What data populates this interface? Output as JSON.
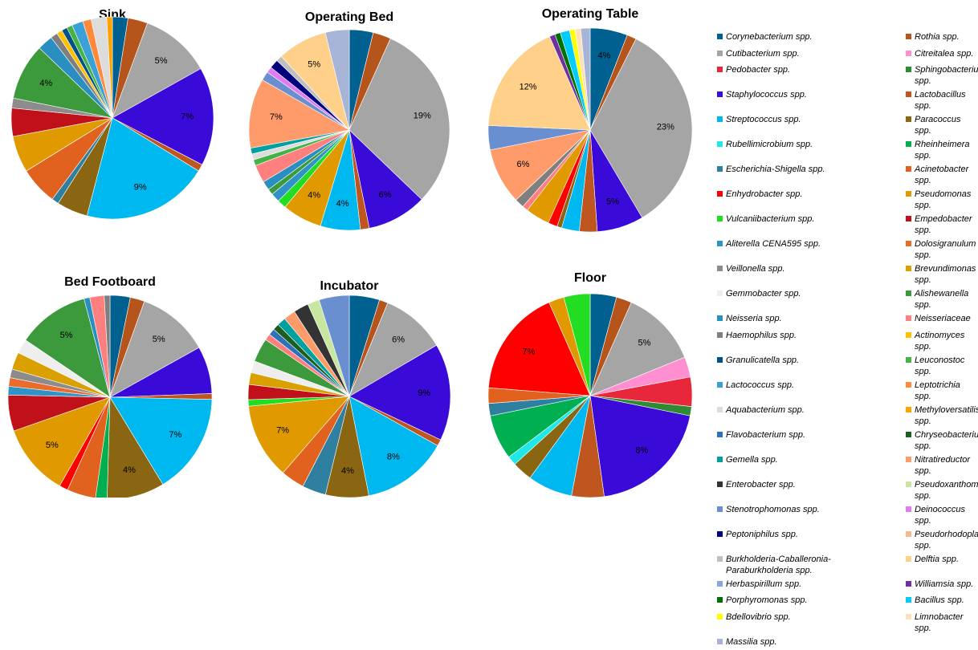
{
  "legend": {
    "labels": [
      "Corynebacterium spp.",
      "Rothia spp.",
      "Cutibacterium spp.",
      "Citreitalea spp.",
      "Pedobacter spp.",
      "Sphingobacterium spp.",
      "Staphylococcus spp.",
      "Lactobacillus spp.",
      "Streptococcus spp.",
      "Paracoccus spp.",
      "Rubellimicrobium spp.",
      "Rheinheimera spp.",
      "Escherichia-Shigella spp.",
      "Acinetobacter spp.",
      "Enhydrobacter spp.",
      "Pseudomonas spp.",
      "Vulcaniibacterium spp.",
      "Empedobacter spp.",
      "Aliterella CENA595 spp.",
      "Dolosigranulum spp.",
      "Veillonella spp.",
      "Brevundimonas spp.",
      "Gemmobacter spp.",
      "Alishewanella spp.",
      "Neisseria spp.",
      "Neisseriaceae",
      "Haemophilus spp.",
      "Actinomyces spp.",
      "Granulicatella spp.",
      "Leuconostoc spp.",
      "Lactococcus spp.",
      "Leptotrichia spp.",
      "Aquabacterium spp.",
      "Methyloversatilis spp.",
      "Flavobacterium spp.",
      "Chryseobacterium spp.",
      "Gemella spp.",
      "Nitratireductor spp.",
      "Enterobacter spp.",
      "Pseudoxanthomonas spp.",
      "Stenotrophomonas spp.",
      "Deinococcus spp.",
      "Peptoniphilus spp.",
      "Pseudorhodoplanes spp.",
      "Burkholderia-Caballeronia-Paraburkholderia spp.",
      "Delftia spp.",
      "Herbaspirillum spp.",
      "Williamsia spp.",
      "Porphyromonas spp.",
      "Bacillus spp.",
      "Bdellovibrio spp.",
      "Limnobacter spp.",
      "Massilia spp."
    ],
    "colors": [
      "#00608f",
      "#b5541b",
      "#a5a5a5",
      "#ff8fd0",
      "#e8283a",
      "#2e8b34",
      "#3a0ad8",
      "#c0561f",
      "#00b8f0",
      "#8a6512",
      "#1ee8e8",
      "#00b050",
      "#2e7fa0",
      "#e0621e",
      "#ff0000",
      "#e09a00",
      "#22dd22",
      "#c0101a",
      "#2f93c8",
      "#e86c2c",
      "#8c8c8c",
      "#d9a000",
      "#eeeeee",
      "#3c9a3c",
      "#2a8fc0",
      "#ff7f7f",
      "#7f7f7f",
      "#ffc000",
      "#00508a",
      "#44b244",
      "#3ba0d8",
      "#ff8a3c",
      "#dcdcdc",
      "#ffa200",
      "#2b72b8",
      "#1b5e20",
      "#00a0a0",
      "#ff9a6a",
      "#333333",
      "#c8e6a0",
      "#6a8fd0",
      "#e27af2",
      "#00007f",
      "#f5b890",
      "#bfbfbf",
      "#ffd08a",
      "#87a9d9",
      "#7030a0",
      "#007000",
      "#00ccff",
      "#ffff00",
      "#ffe0b8",
      "#a6b4d8"
    ]
  },
  "chart_data": [
    {
      "type": "pie",
      "title": "Sink",
      "values": [
        1.1,
        1.4,
        5,
        0,
        0,
        0,
        7,
        0.5,
        9,
        2.2,
        0,
        0,
        0.5,
        2.7,
        0,
        2.6,
        0,
        2,
        0,
        0,
        0.7,
        0,
        0,
        4,
        1.1,
        0,
        0.5,
        0.4,
        0.4,
        0.4,
        0.8,
        0.6,
        1.1,
        0.4,
        0,
        0,
        0,
        0,
        0,
        0,
        0,
        0,
        0,
        0,
        0,
        0,
        0,
        0,
        0,
        0,
        0,
        0,
        0
      ],
      "value_labels": [
        null,
        null,
        "5%",
        null,
        null,
        null,
        "7%",
        null,
        "9%",
        null,
        null,
        null,
        null,
        null,
        null,
        null,
        null,
        null,
        null,
        null,
        null,
        null,
        null,
        "4%",
        null,
        null,
        null,
        null,
        null,
        null,
        null,
        null,
        null,
        null,
        null,
        null,
        null,
        null,
        null,
        null,
        null,
        null,
        null,
        null,
        null,
        null,
        null,
        null,
        null,
        null,
        null,
        null,
        null
      ]
    },
    {
      "type": "pie",
      "title": "Operating Bed",
      "values": [
        2.4,
        1.8,
        19,
        0,
        0,
        0,
        6,
        0.9,
        4,
        0,
        0,
        0,
        0,
        0,
        0,
        4,
        0.9,
        0,
        0.9,
        0,
        0,
        0,
        0,
        0.6,
        0.9,
        1.8,
        0,
        0,
        0,
        0.6,
        0,
        0,
        0.6,
        0,
        0,
        0,
        0.6,
        7,
        0,
        0,
        0.9,
        0.6,
        0.9,
        0,
        0.6,
        5,
        0,
        0,
        0,
        0,
        0,
        0,
        2.4
      ],
      "value_labels": [
        null,
        null,
        "19%",
        null,
        null,
        null,
        "6%",
        null,
        "4%",
        null,
        null,
        null,
        null,
        null,
        null,
        "4%",
        null,
        null,
        null,
        null,
        null,
        null,
        null,
        null,
        null,
        null,
        null,
        null,
        null,
        null,
        null,
        null,
        null,
        null,
        null,
        null,
        null,
        "7%",
        null,
        null,
        null,
        null,
        null,
        null,
        null,
        "5%",
        null,
        null,
        null,
        null,
        null,
        null,
        null
      ]
    },
    {
      "type": "pie",
      "title": "Operating Table",
      "values": [
        4,
        1,
        23,
        0,
        0,
        0,
        5,
        1.9,
        1.9,
        0.5,
        0,
        0,
        0,
        0,
        1,
        2.6,
        0,
        0,
        0,
        0,
        0,
        0,
        0,
        0,
        0,
        0.6,
        1,
        0,
        0,
        0,
        0,
        0,
        0,
        0,
        0,
        0,
        0,
        6,
        0,
        0,
        2.6,
        0,
        0,
        0,
        0,
        12,
        0,
        0.6,
        0.6,
        1,
        0.6,
        0.6,
        1
      ],
      "value_labels": [
        "4%",
        null,
        "23%",
        null,
        null,
        null,
        "5%",
        null,
        null,
        null,
        null,
        null,
        null,
        null,
        null,
        null,
        null,
        null,
        null,
        null,
        null,
        null,
        null,
        null,
        null,
        null,
        null,
        null,
        null,
        null,
        null,
        null,
        null,
        null,
        null,
        null,
        null,
        "6%",
        null,
        null,
        null,
        null,
        null,
        null,
        null,
        "12%",
        null,
        null,
        null,
        null,
        null,
        null,
        null
      ]
    },
    {
      "type": "pie",
      "title": "Bed Footboard",
      "values": [
        1.4,
        1,
        5,
        0,
        0,
        0,
        3.3,
        0.4,
        7,
        4,
        0,
        0.8,
        0,
        2,
        0.6,
        5,
        0,
        2.5,
        0.6,
        0.6,
        0.6,
        1.2,
        1,
        5,
        0.4,
        1,
        0.4,
        0,
        0,
        0,
        0,
        0,
        0,
        0,
        0,
        0,
        0,
        0,
        0,
        0,
        0,
        0,
        0,
        0,
        0,
        0,
        0,
        0,
        0,
        0,
        0,
        0,
        0
      ],
      "value_labels": [
        null,
        null,
        "5%",
        null,
        null,
        null,
        null,
        null,
        "7%",
        "4%",
        null,
        null,
        null,
        null,
        null,
        "5%",
        null,
        null,
        null,
        null,
        null,
        null,
        null,
        "5%",
        null,
        null,
        null,
        null,
        null,
        null,
        null,
        null,
        null,
        null,
        null,
        null,
        null,
        null,
        null,
        null,
        null,
        null,
        null,
        null,
        null,
        null,
        null,
        null,
        null,
        null,
        null,
        null,
        null
      ]
    },
    {
      "type": "pie",
      "title": "Incubator",
      "values": [
        2.8,
        0.8,
        6,
        0,
        0,
        0,
        9,
        0.6,
        8,
        4,
        0,
        0,
        2.2,
        2.2,
        0,
        7,
        0.6,
        1.4,
        0,
        0,
        0,
        1.1,
        1.1,
        2.2,
        0,
        0.6,
        0,
        0,
        0,
        0,
        0,
        0,
        0,
        0,
        0.6,
        0.6,
        0.8,
        1.1,
        1.4,
        1.1,
        2.8,
        0,
        0,
        0,
        0,
        0,
        0,
        0,
        0,
        0,
        0,
        0,
        0
      ],
      "value_labels": [
        null,
        null,
        "6%",
        null,
        null,
        null,
        "9%",
        null,
        "8%",
        "4%",
        null,
        null,
        null,
        null,
        null,
        "7%",
        null,
        null,
        null,
        null,
        null,
        null,
        null,
        null,
        null,
        null,
        null,
        null,
        null,
        null,
        null,
        null,
        null,
        null,
        null,
        null,
        null,
        null,
        null,
        null,
        null,
        null,
        null,
        null,
        null,
        null,
        null,
        null,
        null,
        null,
        null,
        null,
        null
      ]
    },
    {
      "type": "pie",
      "title": "Floor",
      "values": [
        1.7,
        1,
        5,
        1.3,
        1.9,
        0.6,
        8,
        2.1,
        2.9,
        1.3,
        0.6,
        2.9,
        0.8,
        1,
        7,
        1,
        1.7,
        0,
        0,
        0,
        0,
        0,
        0,
        0,
        0,
        0,
        0,
        0,
        0,
        0,
        0,
        0,
        0,
        0,
        0,
        0,
        0,
        0,
        0,
        0,
        0,
        0,
        0,
        0,
        0,
        0,
        0,
        0,
        0,
        0,
        0,
        0,
        0
      ],
      "value_labels": [
        null,
        null,
        "5%",
        null,
        null,
        null,
        "8%",
        null,
        null,
        null,
        null,
        null,
        null,
        null,
        "7%",
        null,
        null,
        null,
        null,
        null,
        null,
        null,
        null,
        null,
        null,
        null,
        null,
        null,
        null,
        null,
        null,
        null,
        null,
        null,
        null,
        null,
        null,
        null,
        null,
        null,
        null,
        null,
        null,
        null,
        null,
        null,
        null,
        null,
        null,
        null,
        null,
        null,
        null
      ]
    }
  ]
}
